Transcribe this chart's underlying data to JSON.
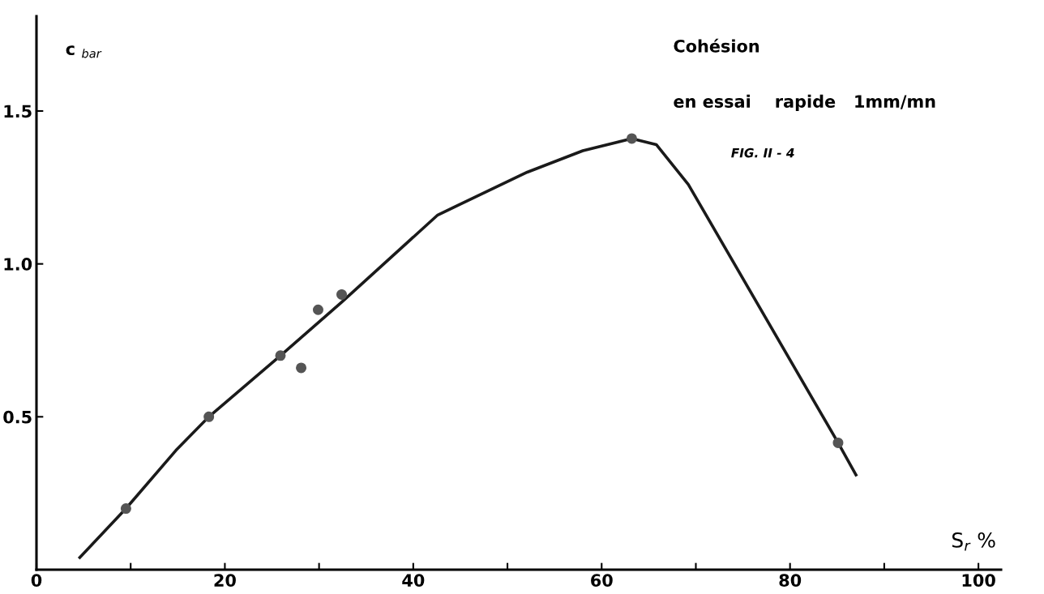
{
  "chart_data": {
    "type": "scatter",
    "title": "Cohésion",
    "subtitle": "en essai    rapide   1mm/mn",
    "annotations": [
      "FIG. II - 4"
    ],
    "xlabel": "S$_{r}$ %",
    "ylabel": "c $_{bar}$",
    "xlim": [
      0,
      102.4
    ],
    "ylim": [
      0,
      1.81
    ],
    "xticks": [
      {
        "value": 0,
        "label": "0"
      },
      {
        "value": 10,
        "label": null
      },
      20,
      {
        "value": 30,
        "label": null
      },
      40,
      {
        "value": 50,
        "label": null
      },
      60,
      {
        "value": 70,
        "label": null
      },
      80,
      {
        "value": 90,
        "label": null
      },
      100
    ],
    "yticks": [
      {
        "value": 0.5,
        "label": "0.5"
      },
      {
        "value": 1.0,
        "label": "1.0"
      },
      {
        "value": 1.5,
        "label": "1.5"
      }
    ],
    "grid": false,
    "legend": false,
    "series": [
      {
        "marker": "circle",
        "color": "#555555",
        "x": [
          9.5,
          18.3,
          25.9,
          28.1,
          29.9,
          32.4,
          63.2,
          85.1
        ],
        "values": [
          0.2,
          0.5,
          0.7,
          0.66,
          0.85,
          0.9,
          1.41,
          0.415
        ]
      },
      {
        "type": "line",
        "marker": "none",
        "line_style": "solid",
        "color": "#1a1a1a",
        "x": [
          4.6,
          9.5,
          14.8,
          18.3,
          25.9,
          32.4,
          42.6,
          52.1,
          58.0,
          63.2,
          65.8,
          69.2,
          85.1,
          87.0
        ],
        "values": [
          0.04,
          0.2,
          0.39,
          0.5,
          0.7,
          0.875,
          1.16,
          1.3,
          1.37,
          1.41,
          1.39,
          1.26,
          0.415,
          0.31
        ]
      }
    ]
  }
}
